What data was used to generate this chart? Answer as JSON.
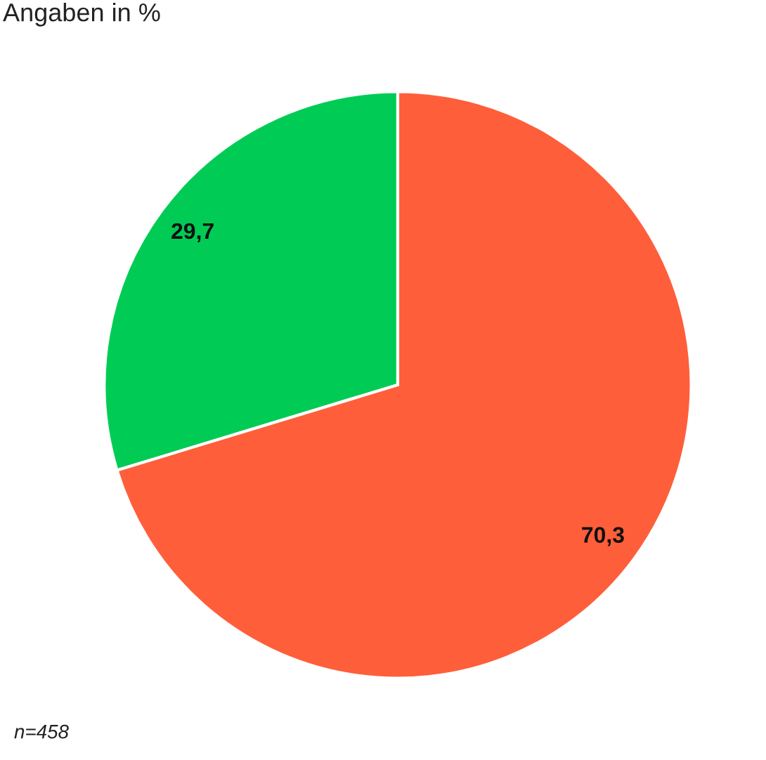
{
  "chart_data": {
    "type": "pie",
    "title": "Angaben in %",
    "categories": [
      null,
      null
    ],
    "values": [
      29.7,
      70.3
    ],
    "colors": [
      "#00cc55",
      "#ff5e3a"
    ],
    "value_labels": [
      "29,7",
      "70,3"
    ],
    "annotations": [
      "n=458"
    ]
  }
}
